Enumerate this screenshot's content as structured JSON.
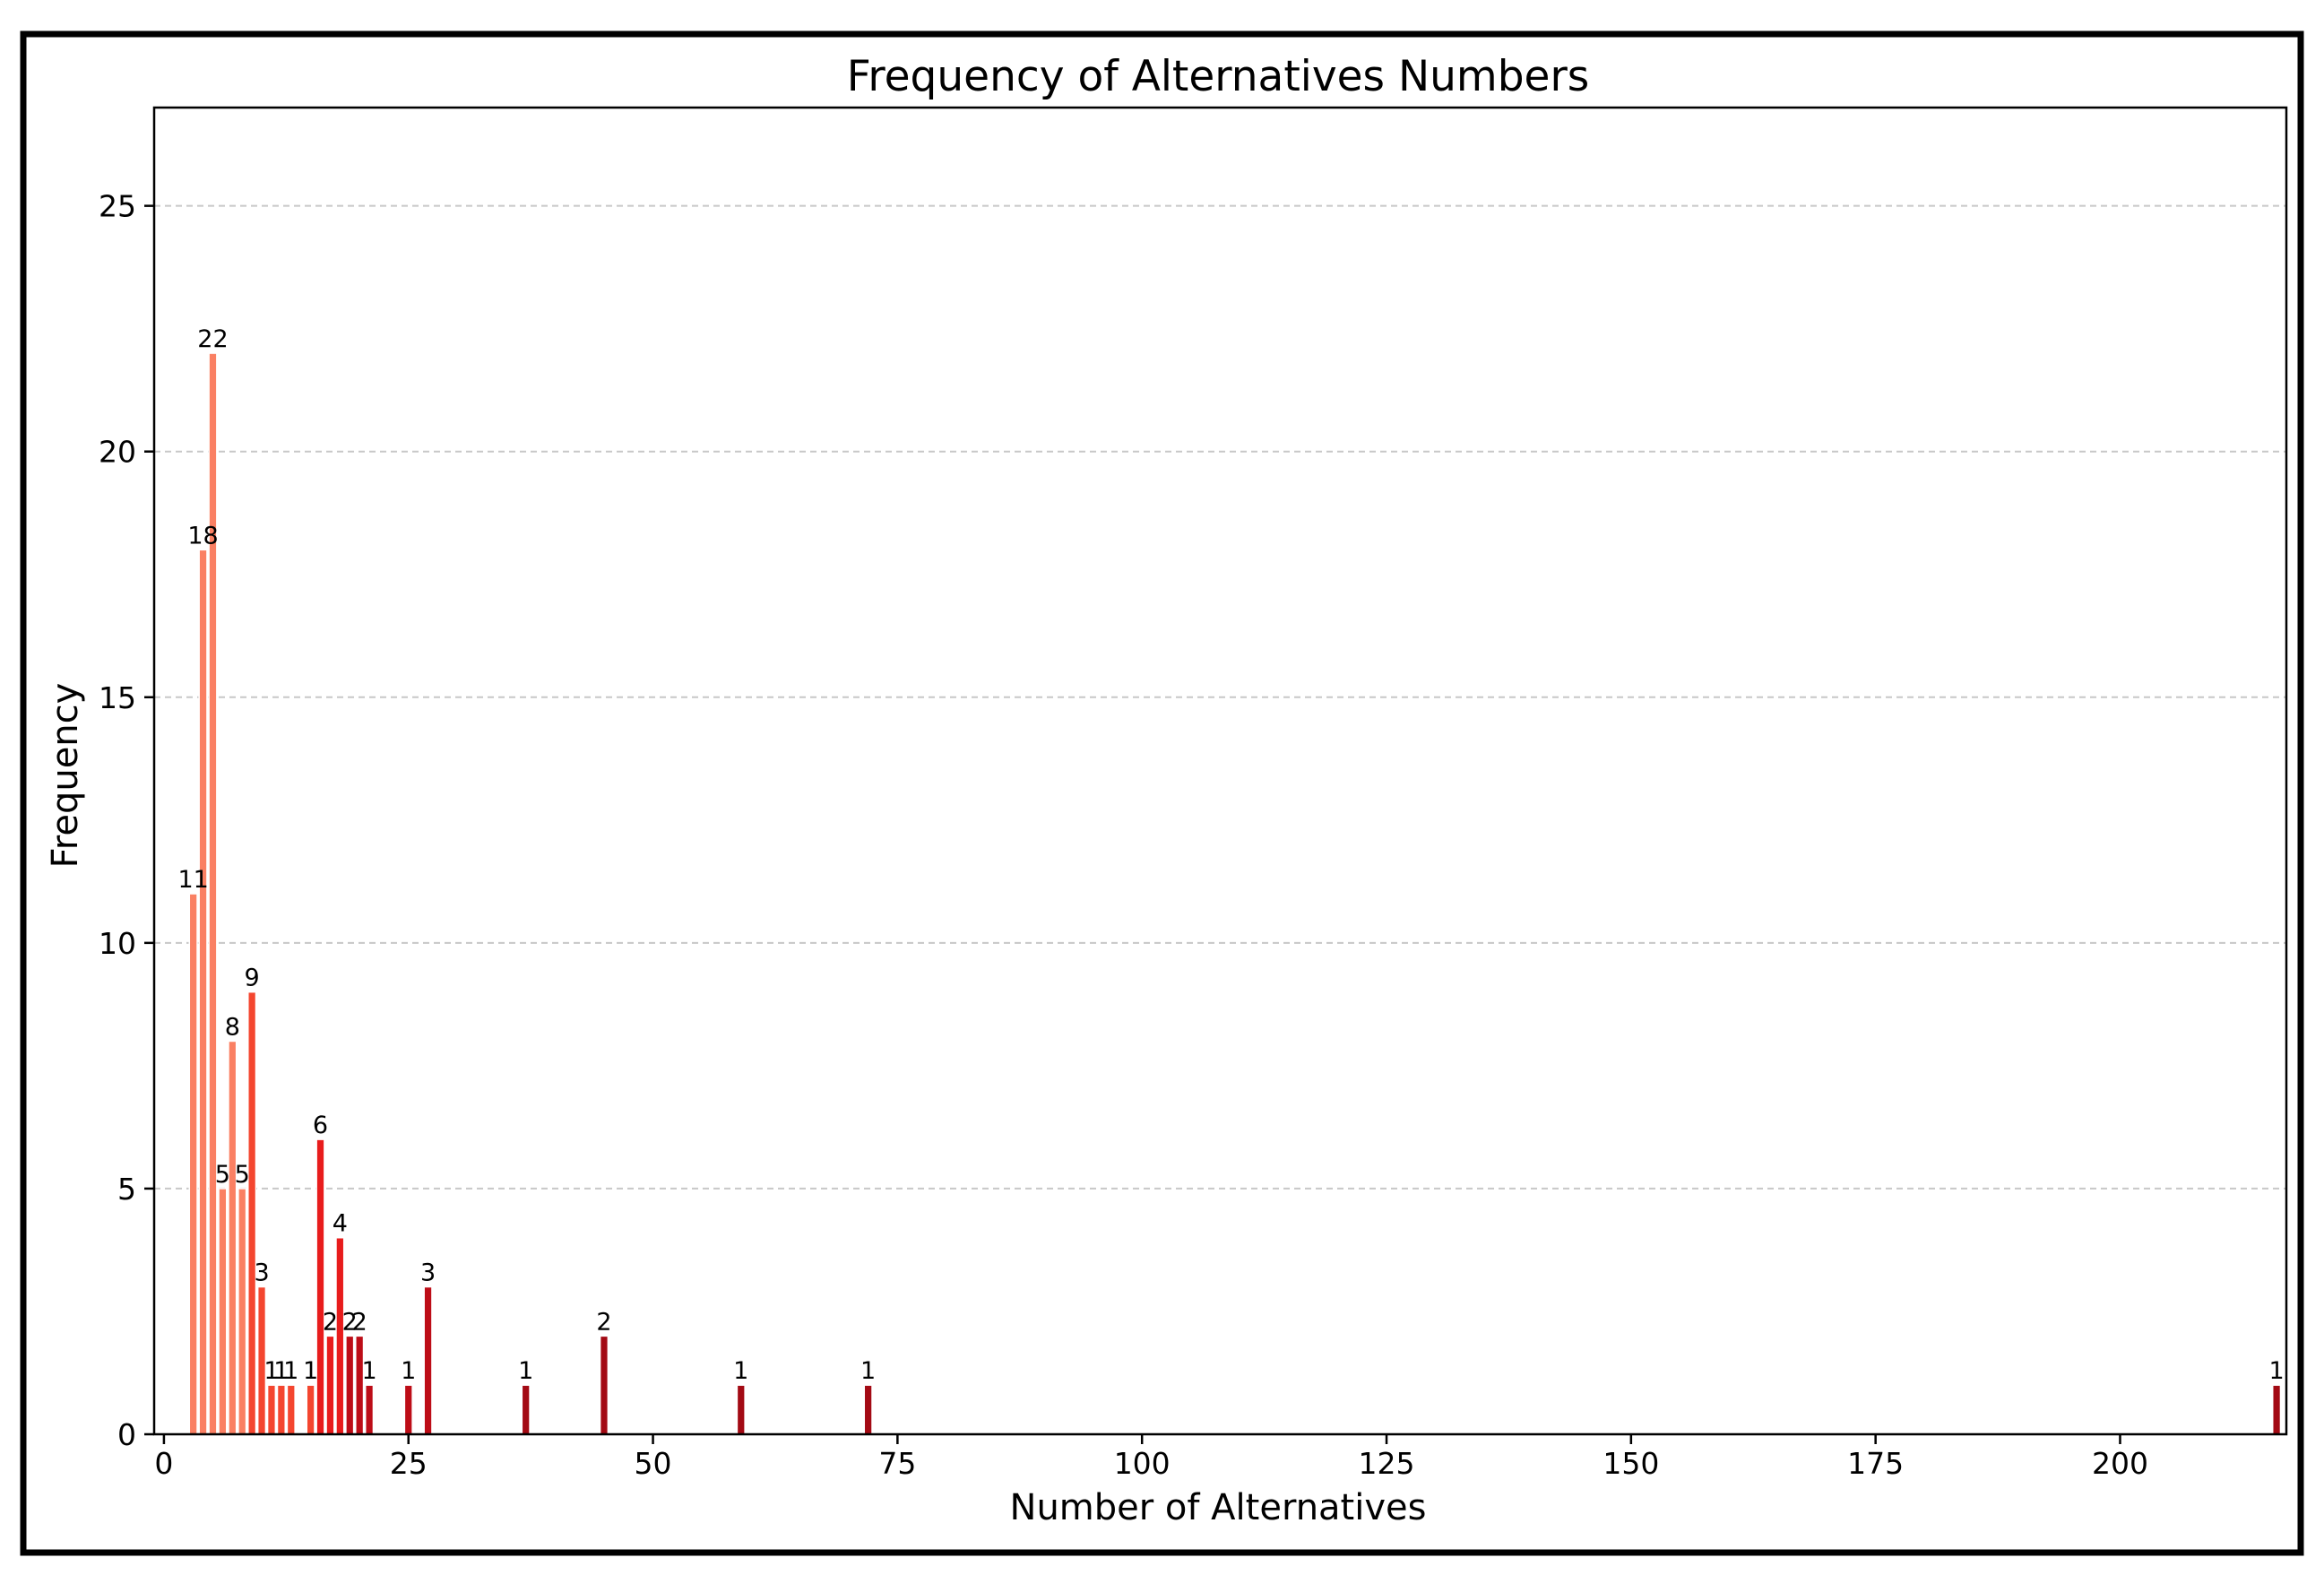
{
  "chart_data": {
    "type": "bar",
    "title": "Frequency of Alternatives Numbers",
    "xlabel": "Number of Alternatives",
    "ylabel": "Frequency",
    "xlim": [
      -1,
      217
    ],
    "ylim": [
      0,
      27
    ],
    "x_ticks": [
      0,
      25,
      50,
      75,
      100,
      125,
      150,
      175,
      200
    ],
    "y_ticks": [
      0,
      5,
      10,
      15,
      20,
      25
    ],
    "grid": "y-dashed",
    "legend": "none",
    "x": [
      3,
      4,
      5,
      6,
      7,
      8,
      9,
      10,
      11,
      12,
      13,
      15,
      16,
      17,
      18,
      19,
      20,
      21,
      25,
      27,
      37,
      45,
      59,
      72,
      216
    ],
    "values": [
      11,
      18,
      22,
      5,
      8,
      5,
      9,
      3,
      1,
      1,
      1,
      1,
      6,
      2,
      4,
      2,
      2,
      1,
      1,
      3,
      1,
      2,
      1,
      1,
      1
    ],
    "labels": [
      "11",
      "18",
      "22",
      "5",
      "8",
      "5",
      "9",
      "3",
      "1",
      "1",
      "1",
      "1",
      "6",
      "2",
      "4",
      "2",
      "2",
      "1",
      "1",
      "3",
      "1",
      "2",
      "1",
      "1",
      "1"
    ],
    "colors": {
      "light": "#fa8063",
      "medium": "#f4462f",
      "red": "#e81c1c",
      "dark": "#bd0d17",
      "darkest": "#a30a14"
    }
  }
}
